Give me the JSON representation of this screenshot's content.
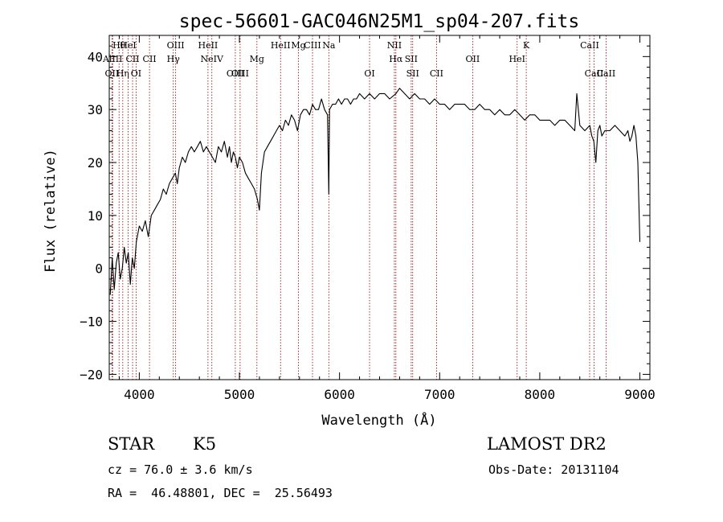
{
  "chart_data": {
    "type": "line",
    "title": "spec-56601-GAC046N25M1_sp04-207.fits",
    "xlabel": "Wavelength (Å)",
    "ylabel": "Flux (relative)",
    "xlim": [
      3700,
      9100
    ],
    "ylim": [
      -21,
      44
    ],
    "x_ticks": [
      4000,
      5000,
      6000,
      7000,
      8000,
      9000
    ],
    "y_ticks": [
      -20,
      -10,
      0,
      10,
      20,
      30,
      40
    ],
    "x_tick_labels": [
      "4000",
      "5000",
      "6000",
      "7000",
      "8000",
      "9000"
    ],
    "y_tick_labels": [
      "−20",
      "−10",
      "0",
      "10",
      "20",
      "30",
      "40"
    ],
    "line_color": "#000000",
    "marker_line_color": "#8b0000",
    "series": [
      {
        "x": [
          3710,
          3730,
          3750,
          3770,
          3790,
          3810,
          3830,
          3850,
          3870,
          3890,
          3910,
          3930,
          3950,
          3970,
          4000,
          4030,
          4060,
          4090,
          4120,
          4150,
          4180,
          4210,
          4240,
          4270,
          4300,
          4330,
          4360,
          4380,
          4400,
          4430,
          4460,
          4490,
          4520,
          4550,
          4580,
          4610,
          4640,
          4670,
          4700,
          4730,
          4760,
          4790,
          4820,
          4850,
          4880,
          4900,
          4920,
          4940,
          4960,
          4980,
          5000,
          5030,
          5060,
          5090,
          5120,
          5150,
          5180,
          5200,
          5220,
          5250,
          5280,
          5310,
          5340,
          5370,
          5400,
          5430,
          5460,
          5490,
          5520,
          5550,
          5580,
          5610,
          5640,
          5670,
          5700,
          5730,
          5760,
          5790,
          5820,
          5850,
          5880,
          5893,
          5900,
          5930,
          5960,
          5990,
          6020,
          6050,
          6080,
          6110,
          6140,
          6170,
          6200,
          6250,
          6300,
          6350,
          6400,
          6450,
          6500,
          6563,
          6600,
          6650,
          6700,
          6750,
          6800,
          6850,
          6900,
          6950,
          7000,
          7050,
          7100,
          7150,
          7200,
          7250,
          7300,
          7350,
          7400,
          7450,
          7500,
          7550,
          7600,
          7650,
          7700,
          7750,
          7800,
          7850,
          7900,
          7950,
          8000,
          8050,
          8100,
          8150,
          8200,
          8250,
          8300,
          8350,
          8370,
          8400,
          8450,
          8500,
          8520,
          8540,
          8560,
          8580,
          8600,
          8620,
          8650,
          8700,
          8750,
          8800,
          8850,
          8880,
          8900,
          8920,
          8940,
          8960,
          8980,
          9000
        ],
        "values": [
          -5,
          2,
          -4,
          1,
          3,
          -2,
          0,
          4,
          1,
          3,
          -3,
          2,
          0,
          5,
          8,
          7,
          9,
          6,
          10,
          11,
          12,
          13,
          15,
          14,
          16,
          17,
          18,
          16,
          19,
          21,
          20,
          22,
          23,
          22,
          23,
          24,
          22,
          23,
          22,
          21,
          20,
          23,
          22,
          24,
          21,
          23,
          20,
          22,
          21,
          19,
          21,
          20,
          18,
          17,
          16,
          15,
          13,
          11,
          18,
          22,
          23,
          24,
          25,
          26,
          27,
          26,
          28,
          27,
          29,
          28,
          26,
          29,
          30,
          30,
          29,
          31,
          30,
          30,
          32,
          30,
          29,
          14,
          30,
          31,
          31,
          32,
          31,
          32,
          32,
          31,
          32,
          32,
          33,
          32,
          33,
          32,
          33,
          33,
          32,
          33,
          34,
          33,
          32,
          33,
          32,
          32,
          31,
          32,
          31,
          31,
          30,
          31,
          31,
          31,
          30,
          30,
          31,
          30,
          30,
          29,
          30,
          29,
          29,
          30,
          29,
          28,
          29,
          29,
          28,
          28,
          28,
          27,
          28,
          28,
          27,
          26,
          33,
          27,
          26,
          27,
          25,
          24,
          20,
          26,
          27,
          25,
          26,
          26,
          27,
          26,
          25,
          26,
          24,
          25,
          27,
          25,
          20,
          5
        ]
      }
    ],
    "line_markers": [
      {
        "x": 3727,
        "label": "OII",
        "row": 3
      },
      {
        "x": 3734,
        "label": "AlIII",
        "row": 2
      },
      {
        "x": 3798,
        "label": "Hθ",
        "row": 1
      },
      {
        "x": 3835,
        "label": "Hη",
        "row": 3
      },
      {
        "x": 3889,
        "label": "HeI",
        "row": 1
      },
      {
        "x": 3933,
        "label": "CII",
        "row": 2
      },
      {
        "x": 3968,
        "label": "OI",
        "row": 3
      },
      {
        "x": 4102,
        "label": "CII",
        "row": 2
      },
      {
        "x": 4340,
        "label": "Hγ",
        "row": 2
      },
      {
        "x": 4363,
        "label": "OIII",
        "row": 1
      },
      {
        "x": 4686,
        "label": "HeII",
        "row": 1
      },
      {
        "x": 4725,
        "label": "NeIV",
        "row": 2
      },
      {
        "x": 4959,
        "label": "OIII",
        "row": 3
      },
      {
        "x": 5007,
        "label": "OIII",
        "row": 3
      },
      {
        "x": 5175,
        "label": "Mg",
        "row": 2
      },
      {
        "x": 5411,
        "label": "HeII",
        "row": 1
      },
      {
        "x": 5590,
        "label": "Mg",
        "row": 1
      },
      {
        "x": 5730,
        "label": "CIII",
        "row": 1
      },
      {
        "x": 5893,
        "label": "Na",
        "row": 1
      },
      {
        "x": 6300,
        "label": "OI",
        "row": 3
      },
      {
        "x": 6548,
        "label": "NII",
        "row": 1
      },
      {
        "x": 6563,
        "label": "Hα",
        "row": 2
      },
      {
        "x": 6716,
        "label": "SII",
        "row": 2
      },
      {
        "x": 6731,
        "label": "SII",
        "row": 3
      },
      {
        "x": 6969,
        "label": "CII",
        "row": 3
      },
      {
        "x": 7330,
        "label": "OII",
        "row": 2
      },
      {
        "x": 7774,
        "label": "HeI",
        "row": 2
      },
      {
        "x": 7865,
        "label": "K",
        "row": 1
      },
      {
        "x": 8498,
        "label": "CaII",
        "row": 1
      },
      {
        "x": 8542,
        "label": "CaII",
        "row": 3
      },
      {
        "x": 8662,
        "label": "CaII",
        "row": 3
      }
    ]
  },
  "info": {
    "object_class": "STAR",
    "subclass": "K5",
    "survey": "LAMOST DR2",
    "redshift_line": "cz = 76.0 ± 3.6 km/s",
    "obs_date_line": "Obs-Date: 20131104",
    "coords_line": "RA =  46.48801, DEC =  25.56493"
  }
}
